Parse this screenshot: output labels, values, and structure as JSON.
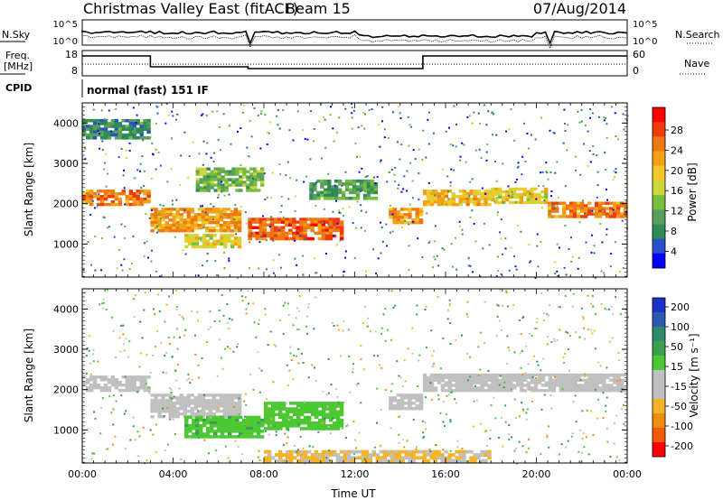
{
  "header": {
    "title": "Christmas Valley East (fitACF)",
    "beam": "Beam 15",
    "date": "07/Aug/2014"
  },
  "strip": {
    "nsky_label": "N.Sky",
    "nsearch_label": "N.Search",
    "nsky_ticks": [
      "10^5",
      "10^0"
    ],
    "nsearch_ticks": [
      "10^5",
      "10^0"
    ],
    "freq_label": [
      "Freq.",
      "[MHz]"
    ],
    "freq_ticks": [
      "18",
      "8"
    ],
    "nave_label": "Nave",
    "nave_ticks": [
      "60",
      "0"
    ],
    "cpid_label": "CPID",
    "cpid_text": "normal (fast) 151 IF"
  },
  "colors": {
    "power_scale": [
      "#0000ff",
      "#2850c8",
      "#2e8b57",
      "#5aa05a",
      "#78be3c",
      "#cdd73c",
      "#f0c828",
      "#f5a014",
      "#f07814",
      "#f03c0a",
      "#ff0000"
    ],
    "velocity_scale": [
      "#ff0000",
      "#f05a0a",
      "#f08c14",
      "#f5b428",
      "#c0c0c0",
      "#c0c0c0",
      "#4cc832",
      "#3ca050",
      "#2e8b6e",
      "#2a5ab4",
      "#1e32c8"
    ],
    "ground_scatter": "#c0c0c0"
  },
  "chart_data": [
    {
      "type": "heatmap",
      "panel": "power",
      "ylabel": "Slant Range [km]",
      "yticks": [
        "4000",
        "3000",
        "2000",
        "1000"
      ],
      "ylim": [
        180,
        4500
      ],
      "xlim": [
        0,
        24
      ],
      "colorbar_label": "Power [dB]",
      "colorbar_ticks": [
        "28",
        "24",
        "20",
        "16",
        "12",
        "8",
        "4"
      ],
      "colorbar_range": [
        0,
        32
      ],
      "bands": [
        {
          "t": [
            0,
            3
          ],
          "range": [
            1950,
            2350
          ],
          "value": 24
        },
        {
          "t": [
            3,
            7
          ],
          "range": [
            1300,
            1900
          ],
          "value": 22
        },
        {
          "t": [
            4.5,
            7
          ],
          "range": [
            900,
            1250
          ],
          "value": 18
        },
        {
          "t": [
            7.3,
            11.5
          ],
          "range": [
            1100,
            1650
          ],
          "value": 26
        },
        {
          "t": [
            10,
            13
          ],
          "range": [
            2100,
            2600
          ],
          "value": 10
        },
        {
          "t": [
            13.5,
            15
          ],
          "range": [
            1500,
            1900
          ],
          "value": 22
        },
        {
          "t": [
            15,
            18
          ],
          "range": [
            1950,
            2350
          ],
          "value": 20
        },
        {
          "t": [
            18,
            20.5
          ],
          "range": [
            2000,
            2400
          ],
          "value": 18
        },
        {
          "t": [
            20.5,
            24
          ],
          "range": [
            1650,
            2050
          ],
          "value": 24
        },
        {
          "t": [
            0,
            3
          ],
          "range": [
            3600,
            4100
          ],
          "value": 8
        },
        {
          "t": [
            5,
            8
          ],
          "range": [
            2300,
            2900
          ],
          "value": 12
        }
      ]
    },
    {
      "type": "heatmap",
      "panel": "velocity",
      "ylabel": "Slant Range [km]",
      "yticks": [
        "4000",
        "3000",
        "2000",
        "1000"
      ],
      "ylim": [
        180,
        4500
      ],
      "xlim": [
        0,
        24
      ],
      "xlabel": "Time UT",
      "xticks": [
        "00:00",
        "04:00",
        "08:00",
        "12:00",
        "16:00",
        "20:00",
        "00:00"
      ],
      "colorbar_label": "Velocity [m s⁻¹]",
      "colorbar_ticks": [
        "200",
        "100",
        "50",
        "15",
        "-15",
        "-50",
        "-100",
        "-200"
      ],
      "bands": [
        {
          "t": [
            0,
            3
          ],
          "range": [
            1950,
            2350
          ],
          "value": 0
        },
        {
          "t": [
            3,
            7
          ],
          "range": [
            1300,
            1900
          ],
          "value": 0
        },
        {
          "t": [
            4.5,
            8
          ],
          "range": [
            800,
            1350
          ],
          "value": 60
        },
        {
          "t": [
            8,
            11.5
          ],
          "range": [
            1000,
            1700
          ],
          "value": 45
        },
        {
          "t": [
            13.5,
            15
          ],
          "range": [
            1500,
            1900
          ],
          "value": 0
        },
        {
          "t": [
            15,
            24
          ],
          "range": [
            1950,
            2400
          ],
          "value": 0
        },
        {
          "t": [
            8,
            18
          ],
          "range": [
            200,
            500
          ],
          "value": -70
        }
      ]
    }
  ]
}
